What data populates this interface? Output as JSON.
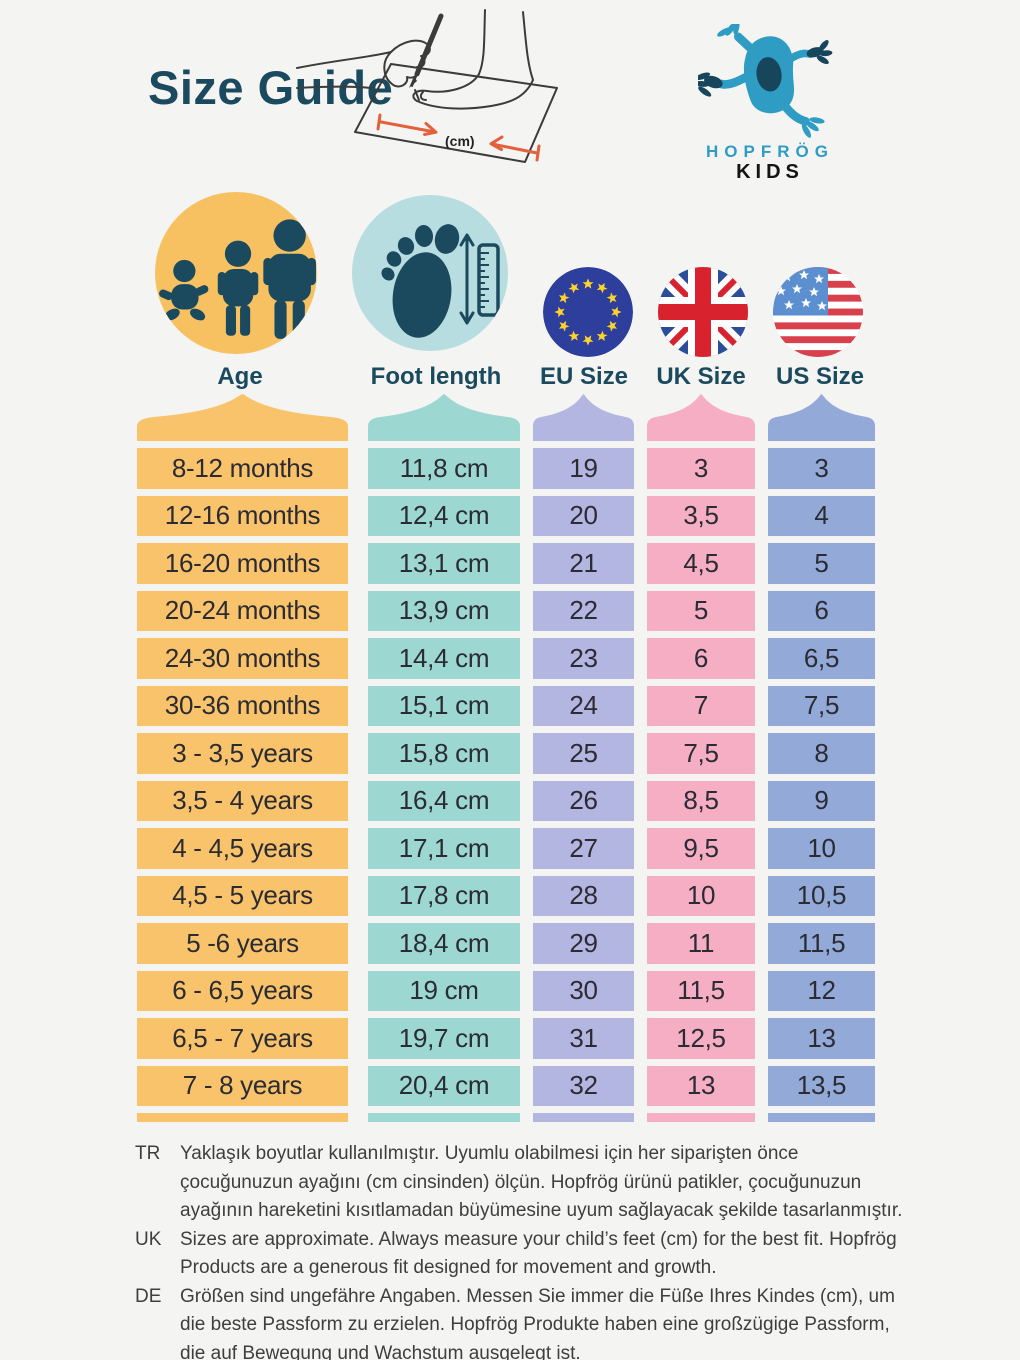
{
  "header": {
    "title": "Size Guide"
  },
  "illustration": {
    "icon": "foot-measuring-illustration",
    "cm_label": "(cm)"
  },
  "brand": {
    "logo_icon": "frog-icon",
    "line1": "HOPFRÖG",
    "line2": "KIDS"
  },
  "columns": [
    {
      "label": "Age",
      "icon": "family-icon",
      "circle_color": "#f7c161",
      "column_color": "#f8c36b"
    },
    {
      "label": "Foot length",
      "icon": "foot-ruler-icon",
      "circle_color": "#b7dde0",
      "column_color": "#9cd8d1"
    },
    {
      "label": "EU Size",
      "icon": "eu-flag-icon",
      "circle_color": "",
      "column_color": "#b4b6e2"
    },
    {
      "label": "UK Size",
      "icon": "uk-flag-icon",
      "circle_color": "",
      "column_color": "#f5aec4"
    },
    {
      "label": "US Size",
      "icon": "us-flag-icon",
      "circle_color": "",
      "column_color": "#93a9d8"
    }
  ],
  "table": {
    "headers": [
      "Age",
      "Foot length",
      "EU Size",
      "UK Size",
      "US Size"
    ],
    "rows": [
      [
        "8-12 months",
        "11,8 cm",
        "19",
        "3",
        "3"
      ],
      [
        "12-16 months",
        "12,4 cm",
        "20",
        "3,5",
        "4"
      ],
      [
        "16-20 months",
        "13,1 cm",
        "21",
        "4,5",
        "5"
      ],
      [
        "20-24 months",
        "13,9 cm",
        "22",
        "5",
        "6"
      ],
      [
        "24-30 months",
        "14,4 cm",
        "23",
        "6",
        "6,5"
      ],
      [
        "30-36 months",
        "15,1 cm",
        "24",
        "7",
        "7,5"
      ],
      [
        "3 - 3,5 years",
        "15,8 cm",
        "25",
        "7,5",
        "8"
      ],
      [
        "3,5 - 4 years",
        "16,4 cm",
        "26",
        "8,5",
        "9"
      ],
      [
        "4 - 4,5 years",
        "17,1 cm",
        "27",
        "9,5",
        "10"
      ],
      [
        "4,5 - 5 years",
        "17,8 cm",
        "28",
        "10",
        "10,5"
      ],
      [
        "5 -6 years",
        "18,4 cm",
        "29",
        "11",
        "11,5"
      ],
      [
        "6 - 6,5 years",
        "19 cm",
        "30",
        "11,5",
        "12"
      ],
      [
        "6,5 - 7 years",
        "19,7 cm",
        "31",
        "12,5",
        "13"
      ],
      [
        "7 - 8 years",
        "20,4 cm",
        "32",
        "13",
        "13,5"
      ]
    ]
  },
  "notes": [
    {
      "lang": "TR",
      "text": "Yaklaşık boyutlar kullanılmıştır. Uyumlu olabilmesi için her siparişten önce çocuğunuzun ayağını (cm cinsinden) ölçün. Hopfrög ürünü patikler, çocuğunuzun ayağının hareketini kısıtlamadan büyümesine uyum sağlayacak şekilde tasarlanmıştır."
    },
    {
      "lang": "UK",
      "text": "Sizes are approximate. Always measure your child’s feet (cm) for the best fit. Hopfrög Products are a generous fit designed for movement and growth."
    },
    {
      "lang": "DE",
      "text": "Größen sind ungefähre Angaben. Messen Sie immer die Füße Ihres Kindes (cm), um die beste Passform zu erzielen. Hopfrög Produkte haben eine großzügige Passform, die auf Bewegung und Wachstum ausgelegt ist."
    }
  ],
  "colors": {
    "page_bg": "#f4f4f2",
    "ink": "#1b4a5e",
    "cell_text": "#2b2b33",
    "footer_text": "#3e3e3e",
    "line_ink": "#3b3b3b",
    "arrow_orange": "#e2603a",
    "frog_blue": "#2f9cc4",
    "frog_dark": "#17455c",
    "kids_black": "#141414",
    "eu_blue": "#2e3e9c",
    "star_yellow": "#ffd429",
    "uk_blue": "#2b4d9b",
    "uk_red": "#d8232e",
    "us_blue": "#5b8fd0",
    "us_red": "#d8414b"
  }
}
